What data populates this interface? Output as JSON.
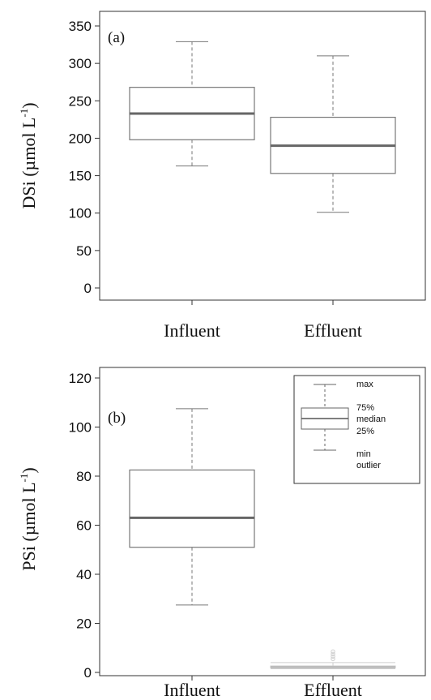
{
  "chart_data": [
    {
      "type": "box",
      "panel_label": "(a)",
      "ylabel": "DSi (µmol L",
      "ylabel_sup": "-1",
      "ylabel_close": ")",
      "ylim": [
        0,
        350
      ],
      "yticks": [
        0,
        50,
        100,
        150,
        200,
        250,
        300,
        350
      ],
      "categories": [
        "Influent",
        "Effluent"
      ],
      "boxes": [
        {
          "category": "Influent",
          "min": 163,
          "q1": 198,
          "median": 233,
          "q3": 268,
          "max": 329,
          "outliers": []
        },
        {
          "category": "Effluent",
          "min": 101,
          "q1": 153,
          "median": 190,
          "q3": 228,
          "max": 310,
          "outliers": []
        }
      ]
    },
    {
      "type": "box",
      "panel_label": "(b)",
      "ylabel": "PSi (µmol L",
      "ylabel_sup": "-1",
      "ylabel_close": ")",
      "ylim": [
        0,
        120
      ],
      "yticks": [
        0,
        20,
        40,
        60,
        80,
        100,
        120
      ],
      "categories": [
        "Influent",
        "Effluent"
      ],
      "boxes": [
        {
          "category": "Influent",
          "min": 27.5,
          "q1": 51,
          "median": 63,
          "q3": 82.5,
          "max": 107.5,
          "outliers": []
        },
        {
          "category": "Effluent",
          "min": 1.5,
          "q1": 1.9,
          "median": 2.2,
          "q3": 2.6,
          "max": 4.0,
          "outliers": [
            5.5,
            6.5,
            7.5,
            8.5
          ],
          "faded": true
        }
      ],
      "legend": {
        "position": "top-right",
        "labels": [
          "max",
          "75%",
          "median",
          "25%",
          "min",
          "outlier"
        ]
      }
    }
  ]
}
